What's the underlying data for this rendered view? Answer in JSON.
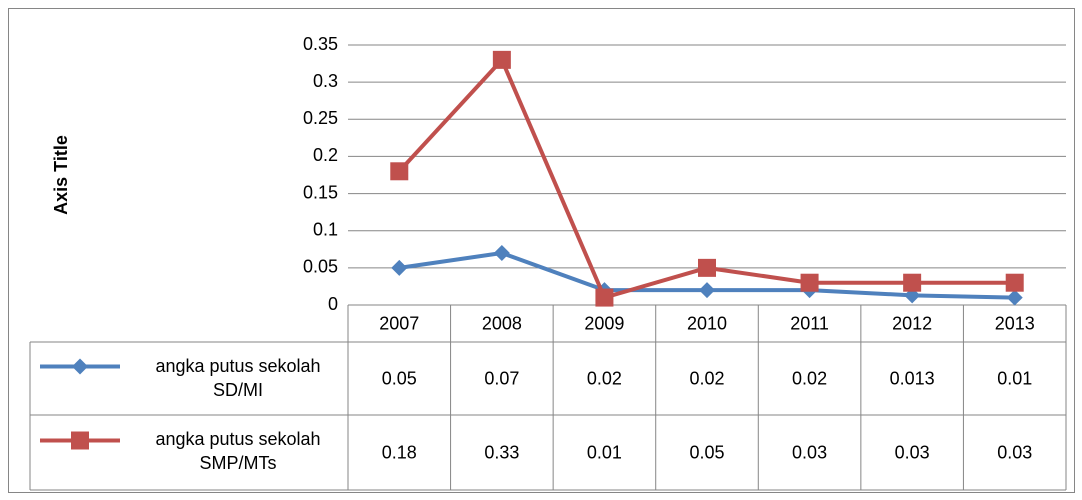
{
  "chart_data": {
    "type": "line",
    "y_label": "Axis Title",
    "categories": [
      "2007",
      "2008",
      "2009",
      "2010",
      "2011",
      "2012",
      "2013"
    ],
    "series": [
      {
        "name": "angka putus sekolah SD/MI",
        "color": "#4f81bd",
        "marker": "diamond",
        "values": [
          0.05,
          0.07,
          0.02,
          0.02,
          0.02,
          0.013,
          0.01
        ]
      },
      {
        "name": "angka putus sekolah SMP/MTs",
        "color": "#c0504d",
        "marker": "square",
        "values": [
          0.18,
          0.33,
          0.01,
          0.05,
          0.03,
          0.03,
          0.03
        ]
      }
    ],
    "ylim": [
      0,
      0.35
    ],
    "yticks": [
      0,
      0.05,
      0.1,
      0.15,
      0.2,
      0.25,
      0.3,
      0.35
    ],
    "grid": true,
    "data_table": true
  }
}
